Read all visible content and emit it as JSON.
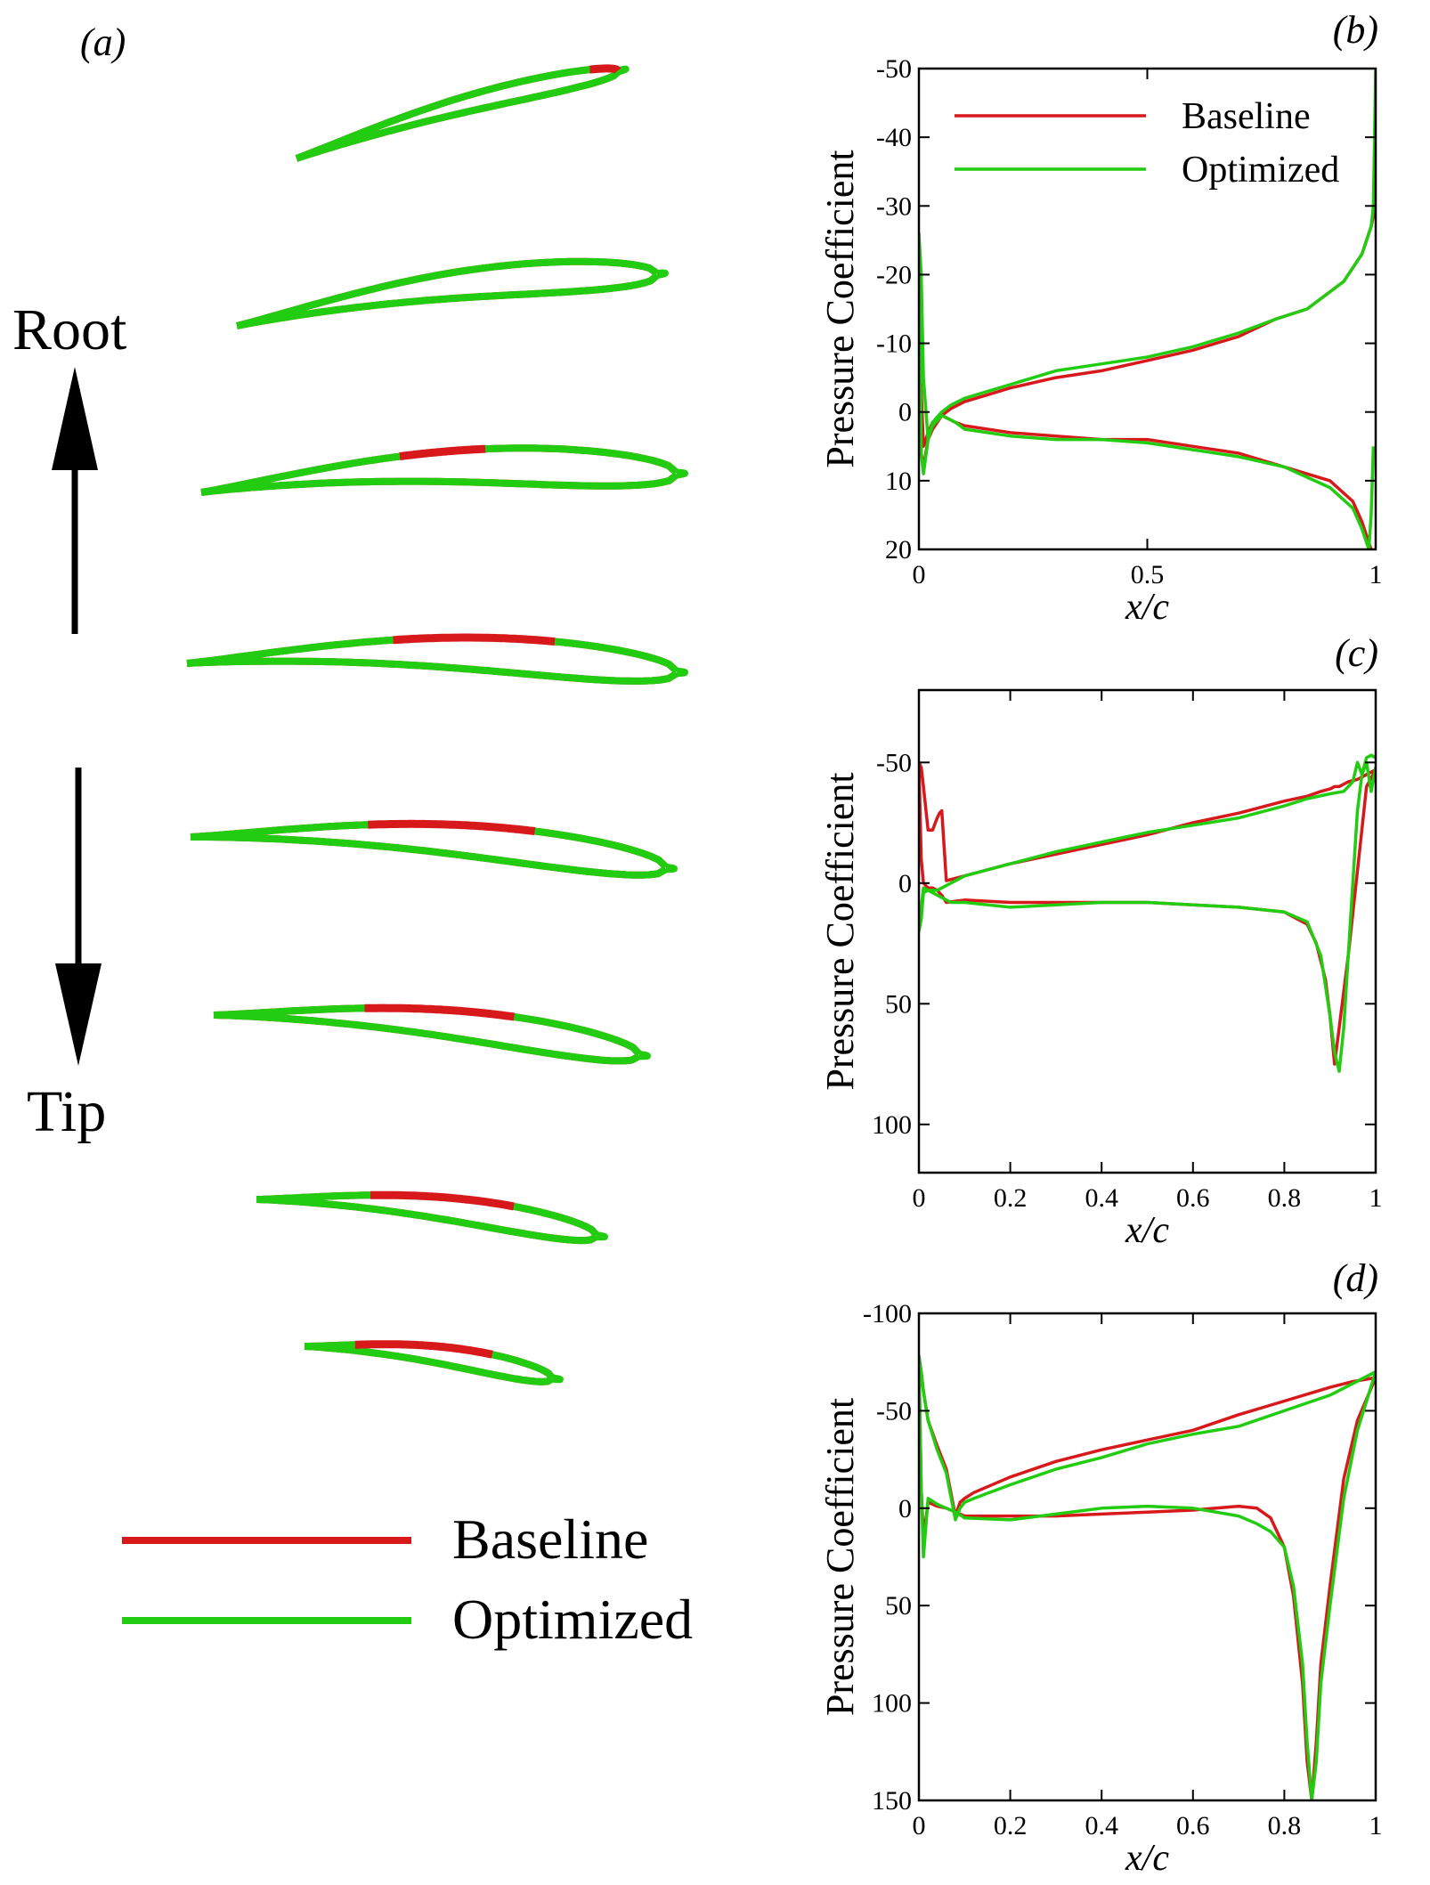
{
  "colors": {
    "baseline": "#d7191c",
    "optimized": "#22cc11",
    "axis": "#000000",
    "background": "#ffffff"
  },
  "panel_a": {
    "label": "(a)",
    "root_label": "Root",
    "tip_label": "Tip",
    "legend": {
      "baseline": "Baseline",
      "optimized": "Optimized"
    },
    "section_count": 8
  },
  "chart_data": [
    {
      "panel_label": "(b)",
      "type": "line",
      "xlabel": "x/c",
      "ylabel": "Pressure Coefficient",
      "xlim": [
        0,
        1
      ],
      "ylim": [
        20,
        -50
      ],
      "y_inverted": true,
      "xticks": [
        0,
        0.5,
        1
      ],
      "xtick_labels": [
        "0",
        "0.5",
        "1"
      ],
      "yticks": [
        -50,
        -40,
        -30,
        -20,
        -10,
        0,
        10,
        20
      ],
      "ytick_labels": [
        "-50",
        "-40",
        "-30",
        "-20",
        "-10",
        "0",
        "10",
        "20"
      ],
      "legend": [
        "Baseline",
        "Optimized"
      ],
      "legend_position": "top-left",
      "series": [
        {
          "name": "Baseline",
          "color": "#d7191c",
          "x": [
            1.0,
            0.99,
            0.97,
            0.93,
            0.85,
            0.78,
            0.7,
            0.6,
            0.5,
            0.4,
            0.3,
            0.2,
            0.15,
            0.1,
            0.07,
            0.05,
            0.03,
            0.02,
            0.01,
            0.005,
            0.0,
            0.005,
            0.01,
            0.02,
            0.03,
            0.05,
            0.08,
            0.1,
            0.2,
            0.3,
            0.4,
            0.5,
            0.6,
            0.7,
            0.8,
            0.9,
            0.95,
            0.97,
            0.985,
            0.99
          ],
          "y": [
            -30,
            -27,
            -23,
            -19,
            -15,
            -13.5,
            -11,
            -9,
            -7.5,
            -6,
            -5,
            -3.5,
            -2.5,
            -1.5,
            -0.5,
            0.5,
            2.5,
            4,
            8,
            6,
            -10,
            -3,
            5,
            3,
            1.5,
            0.5,
            1.5,
            2,
            3,
            3.5,
            4,
            4,
            5,
            6,
            8,
            10,
            13,
            16,
            19,
            20
          ]
        },
        {
          "name": "Optimized",
          "color": "#22cc11",
          "x": [
            1.0,
            0.995,
            0.99,
            0.97,
            0.93,
            0.85,
            0.78,
            0.7,
            0.6,
            0.5,
            0.4,
            0.3,
            0.2,
            0.15,
            0.1,
            0.07,
            0.05,
            0.03,
            0.02,
            0.01,
            0.005,
            0.0,
            0.005,
            0.01,
            0.02,
            0.03,
            0.05,
            0.08,
            0.1,
            0.2,
            0.3,
            0.4,
            0.5,
            0.6,
            0.7,
            0.8,
            0.9,
            0.95,
            0.97,
            0.985,
            0.99,
            0.995
          ],
          "y": [
            -50,
            -30,
            -27,
            -23,
            -19,
            -15,
            -13.5,
            -11.5,
            -9.5,
            -8,
            -7,
            -6,
            -4,
            -3,
            -2,
            -1,
            0,
            1.5,
            4,
            9,
            6,
            -26,
            -20,
            -5,
            4,
            2,
            0.5,
            1.5,
            2.5,
            3.5,
            4,
            4,
            4.5,
            5.5,
            6.5,
            8,
            11,
            14,
            17,
            20,
            15,
            5
          ]
        }
      ]
    },
    {
      "panel_label": "(c)",
      "type": "line",
      "xlabel": "x/c",
      "ylabel": "Pressure Coefficient",
      "xlim": [
        0,
        1
      ],
      "ylim": [
        120,
        -80
      ],
      "y_inverted": true,
      "xticks": [
        0,
        0.2,
        0.4,
        0.6,
        0.8,
        1
      ],
      "xtick_labels": [
        "0",
        "0.2",
        "0.4",
        "0.6",
        "0.8",
        "1"
      ],
      "yticks": [
        -50,
        0,
        50,
        100
      ],
      "ytick_labels": [
        "-50",
        "0",
        "50",
        "100"
      ],
      "legend": [],
      "series": [
        {
          "name": "Baseline",
          "color": "#d7191c",
          "x": [
            1.0,
            0.98,
            0.96,
            0.94,
            0.93,
            0.92,
            0.91,
            0.9,
            0.88,
            0.85,
            0.8,
            0.7,
            0.6,
            0.5,
            0.4,
            0.3,
            0.2,
            0.1,
            0.06,
            0.05,
            0.045,
            0.04,
            0.03,
            0.02,
            0.01,
            0.005,
            0.0,
            0.005,
            0.01,
            0.02,
            0.03,
            0.04,
            0.05,
            0.06,
            0.1,
            0.2,
            0.3,
            0.4,
            0.5,
            0.6,
            0.7,
            0.8,
            0.85,
            0.87,
            0.89,
            0.9,
            0.91,
            0.92,
            0.94,
            0.96,
            0.98,
            1.0
          ],
          "y": [
            -47,
            -45,
            -43,
            -42,
            -41,
            -40,
            -40,
            -39,
            -38,
            -36,
            -34,
            -29,
            -25,
            -20,
            -16,
            -12,
            -8,
            -3,
            -1,
            -30,
            -29,
            -27,
            -22,
            -22,
            -40,
            -48,
            -50,
            -10,
            0,
            2,
            2,
            3,
            5,
            8,
            7,
            8,
            8,
            8,
            8,
            9,
            10,
            12,
            17,
            25,
            40,
            55,
            75,
            60,
            30,
            -5,
            -40,
            -47
          ]
        },
        {
          "name": "Optimized",
          "color": "#22cc11",
          "x": [
            1.0,
            0.99,
            0.98,
            0.97,
            0.96,
            0.95,
            0.93,
            0.9,
            0.85,
            0.8,
            0.7,
            0.6,
            0.5,
            0.4,
            0.3,
            0.2,
            0.1,
            0.07,
            0.05,
            0.04,
            0.03,
            0.02,
            0.01,
            0.005,
            0.0,
            0.005,
            0.01,
            0.02,
            0.03,
            0.05,
            0.07,
            0.1,
            0.2,
            0.3,
            0.4,
            0.5,
            0.6,
            0.7,
            0.8,
            0.85,
            0.88,
            0.9,
            0.91,
            0.92,
            0.93,
            0.94,
            0.95,
            0.96,
            0.97,
            0.98,
            0.99,
            1.0
          ],
          "y": [
            -52,
            -53,
            -52,
            -45,
            -50,
            -42,
            -38,
            -37,
            -35,
            -32,
            -27,
            -24,
            -21,
            -17,
            -13,
            -8,
            -3,
            0,
            2,
            3,
            3,
            3,
            4,
            15,
            20,
            10,
            2,
            3,
            4,
            6,
            8,
            8,
            10,
            9,
            8,
            8,
            9,
            10,
            12,
            16,
            30,
            55,
            70,
            78,
            60,
            30,
            0,
            -30,
            -45,
            -50,
            -38,
            -48
          ]
        }
      ]
    },
    {
      "panel_label": "(d)",
      "type": "line",
      "xlabel": "x/c",
      "ylabel": "Pressure Coefficient",
      "xlim": [
        0,
        1
      ],
      "ylim": [
        150,
        -100
      ],
      "y_inverted": true,
      "xticks": [
        0,
        0.2,
        0.4,
        0.6,
        0.8,
        1
      ],
      "xtick_labels": [
        "0",
        "0.2",
        "0.4",
        "0.6",
        "0.8",
        "1"
      ],
      "yticks": [
        -100,
        -50,
        0,
        50,
        100,
        150
      ],
      "ytick_labels": [
        "-100",
        "-50",
        "0",
        "50",
        "100",
        "150"
      ],
      "legend": [],
      "series": [
        {
          "name": "Baseline",
          "color": "#d7191c",
          "x": [
            1.0,
            0.95,
            0.9,
            0.8,
            0.7,
            0.6,
            0.5,
            0.4,
            0.3,
            0.2,
            0.12,
            0.1,
            0.09,
            0.08,
            0.06,
            0.04,
            0.02,
            0.01,
            0.005,
            0.0,
            0.005,
            0.01,
            0.02,
            0.04,
            0.06,
            0.08,
            0.1,
            0.2,
            0.3,
            0.4,
            0.5,
            0.6,
            0.65,
            0.7,
            0.74,
            0.77,
            0.8,
            0.82,
            0.84,
            0.85,
            0.86,
            0.87,
            0.88,
            0.9,
            0.93,
            0.96,
            1.0
          ],
          "y": [
            -67,
            -65,
            -62,
            -55,
            -48,
            -40,
            -35,
            -30,
            -24,
            -16,
            -8,
            -5,
            -3,
            4,
            -20,
            -32,
            -45,
            -60,
            -70,
            -78,
            -10,
            15,
            -3,
            -1,
            0,
            2,
            4,
            4,
            4,
            3,
            2,
            1,
            0,
            -1,
            0,
            5,
            20,
            45,
            90,
            130,
            150,
            120,
            80,
            40,
            -15,
            -45,
            -67
          ]
        },
        {
          "name": "Optimized",
          "color": "#22cc11",
          "x": [
            1.0,
            0.95,
            0.9,
            0.8,
            0.7,
            0.6,
            0.5,
            0.4,
            0.3,
            0.2,
            0.12,
            0.1,
            0.09,
            0.08,
            0.06,
            0.04,
            0.02,
            0.01,
            0.005,
            0.0,
            0.005,
            0.01,
            0.02,
            0.04,
            0.06,
            0.08,
            0.1,
            0.2,
            0.3,
            0.4,
            0.5,
            0.6,
            0.65,
            0.7,
            0.74,
            0.77,
            0.8,
            0.82,
            0.84,
            0.85,
            0.86,
            0.87,
            0.88,
            0.9,
            0.93,
            0.96,
            1.0
          ],
          "y": [
            -70,
            -64,
            -58,
            -50,
            -42,
            -38,
            -33,
            -26,
            -20,
            -12,
            -5,
            -3,
            0,
            6,
            -18,
            -30,
            -45,
            -60,
            -70,
            -78,
            -10,
            25,
            -5,
            -2,
            0,
            2,
            5,
            6,
            3,
            0,
            -1,
            0,
            2,
            4,
            8,
            12,
            20,
            40,
            80,
            120,
            150,
            130,
            90,
            50,
            -5,
            -40,
            -70
          ]
        }
      ]
    }
  ]
}
